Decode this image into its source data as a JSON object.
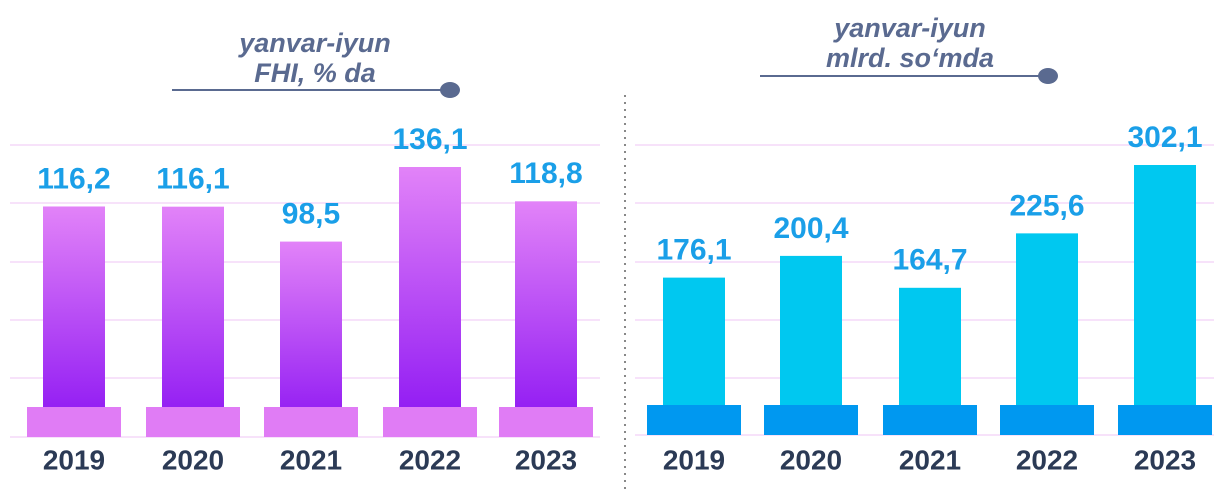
{
  "chart_data": [
    {
      "type": "bar",
      "title_lines": [
        "yanvar-iyun",
        "FHI, % da"
      ],
      "categories": [
        "2019",
        "2020",
        "2021",
        "2022",
        "2023"
      ],
      "values": [
        116.2,
        116.1,
        98.5,
        136.1,
        118.8
      ],
      "value_labels": [
        "116,2",
        "116,1",
        "98,5",
        "136,1",
        "118,8"
      ],
      "color": "#a12cf4",
      "grid": true
    },
    {
      "type": "bar",
      "title_lines": [
        "yanvar-iyun",
        "mlrd. so‘mda"
      ],
      "categories": [
        "2019",
        "2020",
        "2021",
        "2022",
        "2023"
      ],
      "values": [
        176.1,
        200.4,
        164.7,
        225.6,
        302.1
      ],
      "value_labels": [
        "176,1",
        "200,4",
        "164,7",
        "225,6",
        "302,1"
      ],
      "color": "#00c8f0",
      "grid": true
    }
  ]
}
